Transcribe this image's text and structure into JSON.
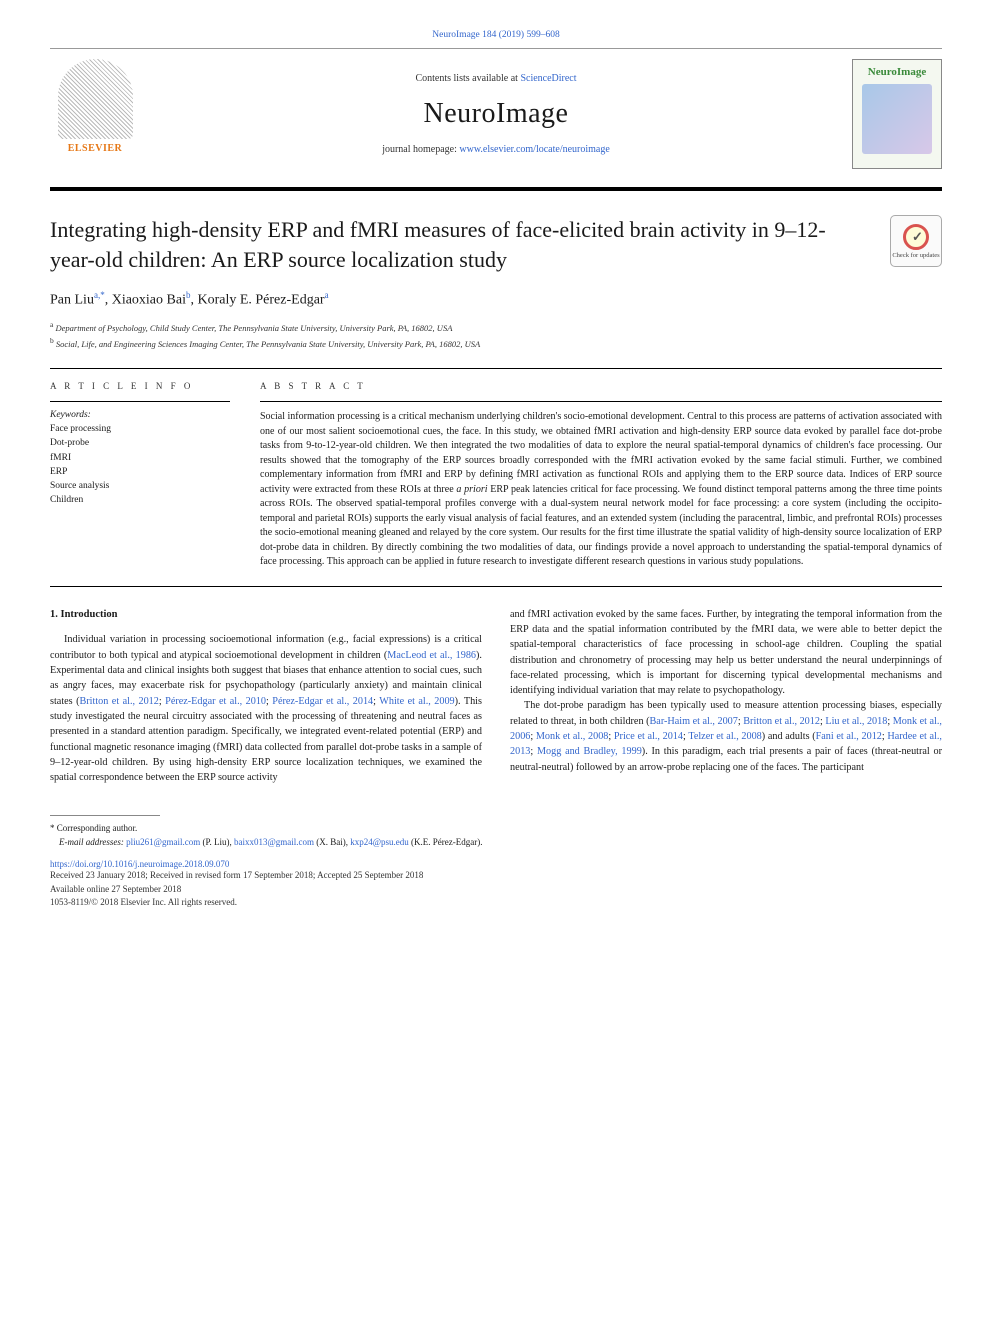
{
  "top_link": "NeuroImage 184 (2019) 599–608",
  "header": {
    "contents_prefix": "Contents lists available at ",
    "contents_link": "ScienceDirect",
    "journal_title": "NeuroImage",
    "homepage_prefix": "journal homepage: ",
    "homepage_link": "www.elsevier.com/locate/neuroimage",
    "elsevier": "ELSEVIER",
    "right_logo": "NeuroImage"
  },
  "check_badge": "Check for updates",
  "title": "Integrating high-density ERP and fMRI measures of face-elicited brain activity in 9–12-year-old children: An ERP source localization study",
  "authors": {
    "a1_name": "Pan Liu",
    "a1_sup": "a,*",
    "a2_name": "Xiaoxiao Bai",
    "a2_sup": "b",
    "a3_name": "Koraly E. Pérez-Edgar",
    "a3_sup": "a"
  },
  "affiliations": {
    "a": "Department of Psychology, Child Study Center, The Pennsylvania State University, University Park, PA, 16802, USA",
    "b": "Social, Life, and Engineering Sciences Imaging Center, The Pennsylvania State University, University Park, PA, 16802, USA"
  },
  "info_label": "A R T I C L E  I N F O",
  "abstract_label": "A B S T R A C T",
  "keywords_title": "Keywords:",
  "keywords": [
    "Face processing",
    "Dot-probe",
    "fMRI",
    "ERP",
    "Source analysis",
    "Children"
  ],
  "abstract": "Social information processing is a critical mechanism underlying children's socio-emotional development. Central to this process are patterns of activation associated with one of our most salient socioemotional cues, the face. In this study, we obtained fMRI activation and high-density ERP source data evoked by parallel face dot-probe tasks from 9-to-12-year-old children. We then integrated the two modalities of data to explore the neural spatial-temporal dynamics of children's face processing. Our results showed that the tomography of the ERP sources broadly corresponded with the fMRI activation evoked by the same facial stimuli. Further, we combined complementary information from fMRI and ERP by defining fMRI activation as functional ROIs and applying them to the ERP source data. Indices of ERP source activity were extracted from these ROIs at three a priori ERP peak latencies critical for face processing. We found distinct temporal patterns among the three time points across ROIs. The observed spatial-temporal profiles converge with a dual-system neural network model for face processing: a core system (including the occipito-temporal and parietal ROIs) supports the early visual analysis of facial features, and an extended system (including the paracentral, limbic, and prefrontal ROIs) processes the socio-emotional meaning gleaned and relayed by the core system. Our results for the first time illustrate the spatial validity of high-density source localization of ERP dot-probe data in children. By directly combining the two modalities of data, our findings provide a novel approach to understanding the spatial-temporal dynamics of face processing. This approach can be applied in future research to investigate different research questions in various study populations.",
  "section_heading": "1. Introduction",
  "col1": "Individual variation in processing socioemotional information (e.g., facial expressions) is a critical contributor to both typical and atypical socioemotional development in children (MacLeod et al., 1986). Experimental data and clinical insights both suggest that biases that enhance attention to social cues, such as angry faces, may exacerbate risk for psychopathology (particularly anxiety) and maintain clinical states (Britton et al., 2012; Pérez-Edgar et al., 2010; Pérez-Edgar et al., 2014; White et al., 2009). This study investigated the neural circuitry associated with the processing of threatening and neutral faces as presented in a standard attention paradigm. Specifically, we integrated event-related potential (ERP) and functional magnetic resonance imaging (fMRI) data collected from parallel dot-probe tasks in a sample of 9–12-year-old children. By using high-density ERP source localization techniques, we examined the spatial correspondence between the ERP source activity",
  "col1_links": [
    "MacLeod et al., 1986",
    "Britton et al., 2012",
    "Pérez-Edgar et al., 2010",
    "Pérez-Edgar et al., 2014",
    "White et al., 2009"
  ],
  "col2_p1": "and fMRI activation evoked by the same faces. Further, by integrating the temporal information from the ERP data and the spatial information contributed by the fMRI data, we were able to better depict the spatial-temporal characteristics of face processing in school-age children. Coupling the spatial distribution and chronometry of processing may help us better understand the neural underpinnings of face-related processing, which is important for discerning typical developmental mechanisms and identifying individual variation that may relate to psychopathology.",
  "col2_p2": "The dot-probe paradigm has been typically used to measure attention processing biases, especially related to threat, in both children (Bar-Haim et al., 2007; Britton et al., 2012; Liu et al., 2018; Monk et al., 2006; Monk et al., 2008; Price et al., 2014; Telzer et al., 2008) and adults (Fani et al., 2012; Hardee et al., 2013; Mogg and Bradley, 1999). In this paradigm, each trial presents a pair of faces (threat-neutral or neutral-neutral) followed by an arrow-probe replacing one of the faces. The participant",
  "col2_links": [
    "Bar-Haim et al., 2007",
    "Britton et al., 2012",
    "Liu et al., 2018",
    "Monk et al., 2006",
    "Monk et al., 2008",
    "Price et al., 2014",
    "Telzer et al., 2008",
    "Fani et al., 2012",
    "Hardee et al., 2013",
    "Mogg and Bradley, 1999"
  ],
  "footnote": {
    "star": "* Corresponding author.",
    "emails_label": "E-mail addresses:",
    "e1": "pliu261@gmail.com",
    "e1_name": "(P. Liu),",
    "e2": "baixx013@gmail.com",
    "e2_name": "(X. Bai),",
    "e3": "kxp24@psu.edu",
    "e3_name": "(K.E. Pérez-Edgar)."
  },
  "doi": "https://doi.org/10.1016/j.neuroimage.2018.09.070",
  "history": {
    "received": "Received 23 January 2018; Received in revised form 17 September 2018; Accepted 25 September 2018",
    "online": "Available online 27 September 2018",
    "copyright": "1053-8119/© 2018 Elsevier Inc. All rights reserved."
  }
}
